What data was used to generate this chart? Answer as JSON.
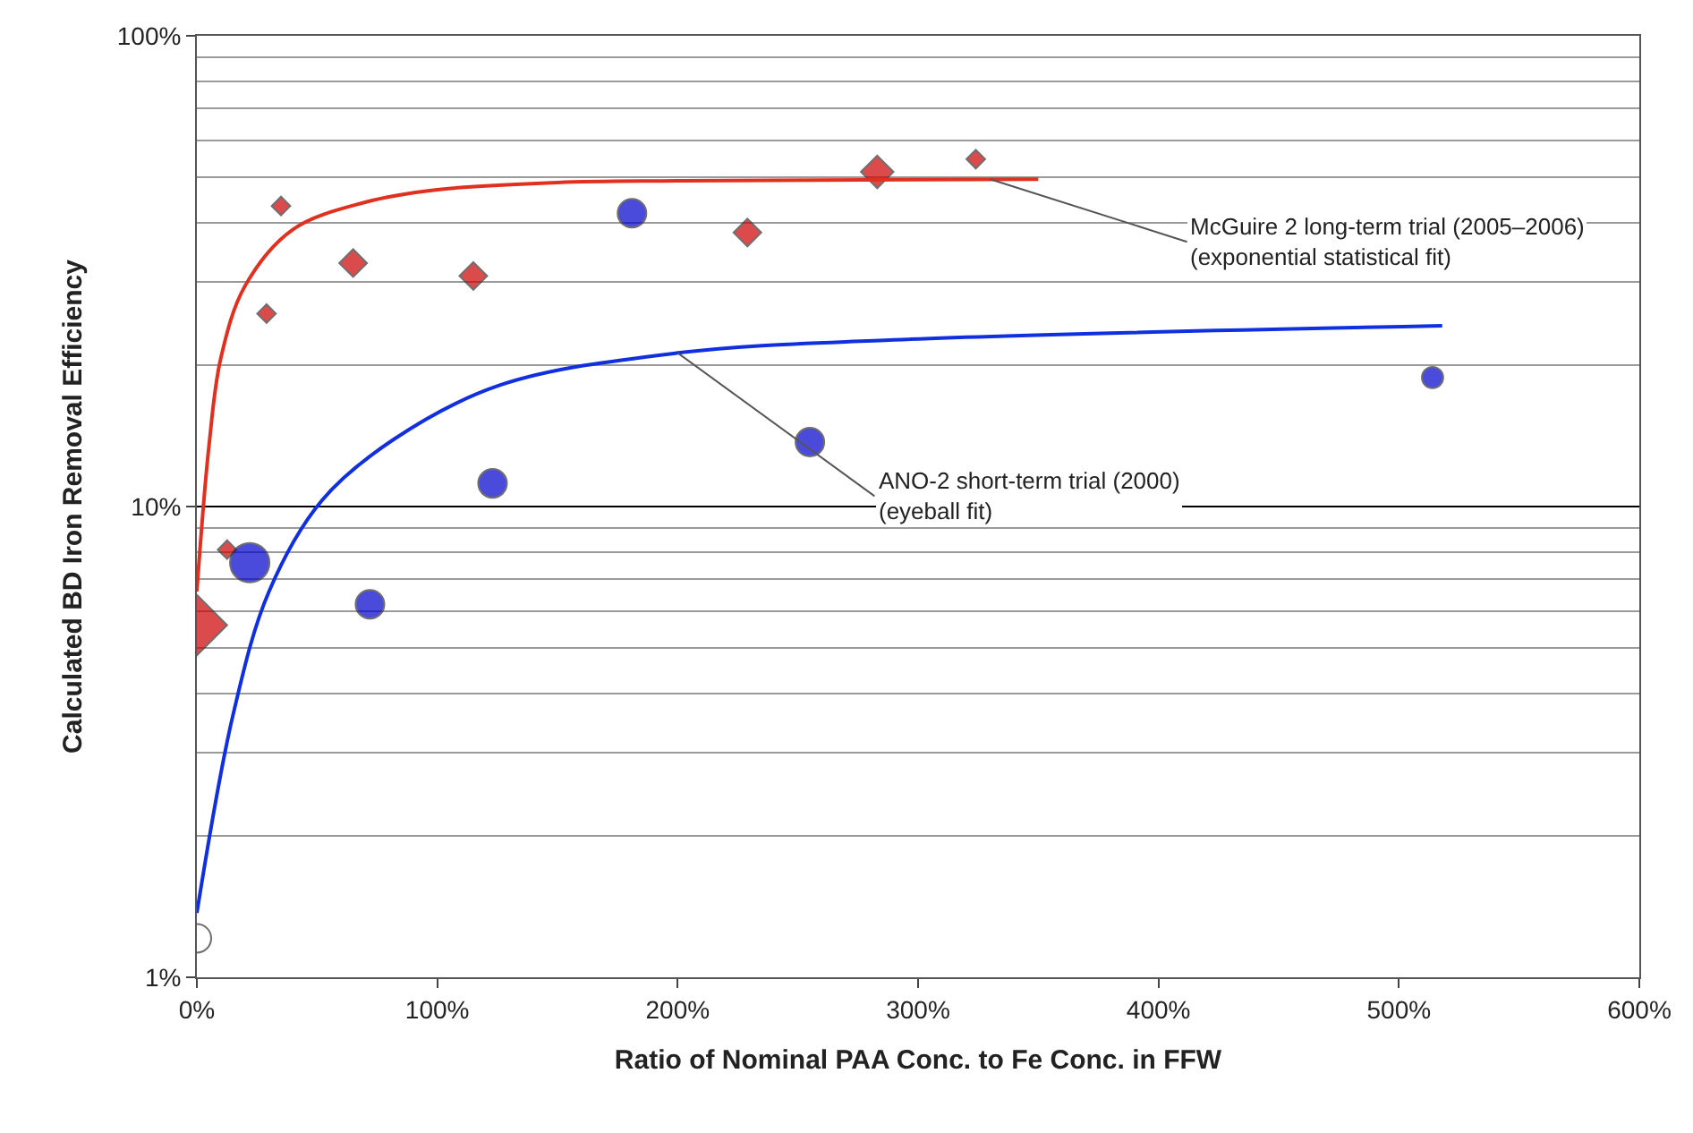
{
  "chart_data": {
    "type": "bubble",
    "xlabel": "Ratio of Nominal PAA Conc. to Fe Conc. in FFW",
    "ylabel": "Calculated BD Iron Removal Efficiency",
    "xlim": [
      0,
      600
    ],
    "ylim": [
      1,
      100
    ],
    "log": "y",
    "xticks": [
      {
        "value": 0,
        "label": "0%"
      },
      {
        "value": 100,
        "label": "100%"
      },
      {
        "value": 200,
        "label": "200%"
      },
      {
        "value": 300,
        "label": "300%"
      },
      {
        "value": 400,
        "label": "400%"
      },
      {
        "value": 500,
        "label": "500%"
      },
      {
        "value": 600,
        "label": "600%"
      }
    ],
    "yticks": [
      {
        "value": 1,
        "label": "1%"
      },
      {
        "value": 10,
        "label": "10%"
      },
      {
        "value": 100,
        "label": "100%"
      }
    ],
    "grid": "y",
    "series": [
      {
        "marker": "diamond",
        "color": "#cc0000",
        "x": [
          0,
          12.6,
          29,
          35,
          65,
          115,
          229,
          283,
          324
        ],
        "values": [
          5.6,
          8.1,
          25.7,
          43.5,
          32.9,
          30.9,
          38.2,
          51.4,
          54.7
        ],
        "sizes": [
          1,
          0.095,
          0.095,
          0.095,
          0.21,
          0.21,
          0.21,
          0.29,
          0.095
        ]
      },
      {
        "marker": "circle",
        "color": "#0000cc",
        "colors": [
          "#ffffff",
          "#0000cc",
          "#0000cc",
          "#0000cc",
          "#0000cc",
          "#0000cc",
          "#0000cc"
        ],
        "x": [
          0,
          22,
          72,
          123,
          181,
          255,
          514
        ],
        "values": [
          1.21,
          7.6,
          6.2,
          11.2,
          42,
          13.7,
          18.8
        ],
        "sizes": [
          0.38,
          0.72,
          0.38,
          0.38,
          0.38,
          0.38,
          0.21
        ]
      },
      {
        "type": "line",
        "marker": "none",
        "color": "#e03020",
        "x": [
          0,
          5,
          10,
          20,
          40,
          70,
          100,
          150,
          200,
          350
        ],
        "values": [
          6.6,
          13.4,
          20.7,
          29.4,
          38.8,
          44.3,
          47.1,
          48.8,
          49.2,
          49.6
        ]
      },
      {
        "type": "line",
        "marker": "none",
        "color": "#1030e0",
        "x": [
          0,
          15,
          30,
          52,
          82,
          126,
          200,
          290,
          518
        ],
        "values": [
          1.37,
          3.6,
          6.6,
          10.3,
          13.9,
          18.1,
          21.2,
          22.6,
          24.2
        ]
      }
    ],
    "annotations": [
      {
        "text": "McGuire 2 long-term trial (2005–2006)\n(exponential statistical fit)",
        "x": 330,
        "y": 49.6
      },
      {
        "text": "ANO-2 short-term trial (2000)\n(eyeball fit)",
        "x": 200,
        "y": 21.2
      }
    ]
  }
}
